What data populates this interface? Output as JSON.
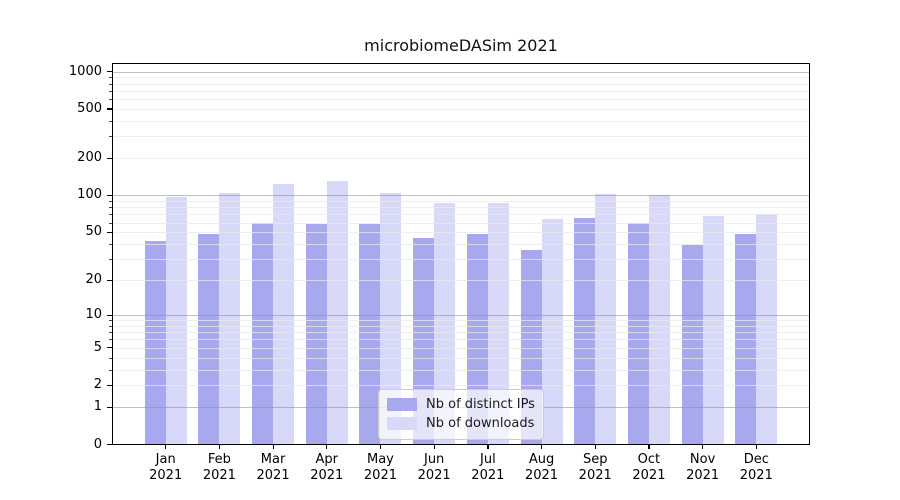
{
  "chart_data": {
    "type": "bar",
    "title": "microbiomeDASim 2021",
    "categories": [
      {
        "month": "Jan",
        "year": "2021"
      },
      {
        "month": "Feb",
        "year": "2021"
      },
      {
        "month": "Mar",
        "year": "2021"
      },
      {
        "month": "Apr",
        "year": "2021"
      },
      {
        "month": "May",
        "year": "2021"
      },
      {
        "month": "Jun",
        "year": "2021"
      },
      {
        "month": "Jul",
        "year": "2021"
      },
      {
        "month": "Aug",
        "year": "2021"
      },
      {
        "month": "Sep",
        "year": "2021"
      },
      {
        "month": "Oct",
        "year": "2021"
      },
      {
        "month": "Nov",
        "year": "2021"
      },
      {
        "month": "Dec",
        "year": "2021"
      }
    ],
    "series": [
      {
        "name": "Nb of distinct IPs",
        "color": "#a8a8ee",
        "values": [
          42,
          48,
          60,
          58,
          58,
          45,
          48,
          36,
          66,
          60,
          39,
          48
        ]
      },
      {
        "name": "Nb of downloads",
        "color": "#d8d8f8",
        "values": [
          97,
          105,
          123,
          131,
          104,
          86,
          86,
          64,
          102,
          100,
          68,
          70
        ]
      }
    ],
    "yticks": [
      0,
      1,
      2,
      5,
      10,
      20,
      50,
      100,
      200,
      500,
      1000
    ],
    "y_scale": "log10(1+x)",
    "ylim": [
      0,
      1175
    ],
    "xlabel": "",
    "ylabel": "",
    "grid": true,
    "legend_position": "lower center"
  },
  "colors": {
    "major_grid": "#8c8c8c",
    "minor_grid": "#e9e9e9",
    "axis": "#000000",
    "background": "#ffffff"
  }
}
